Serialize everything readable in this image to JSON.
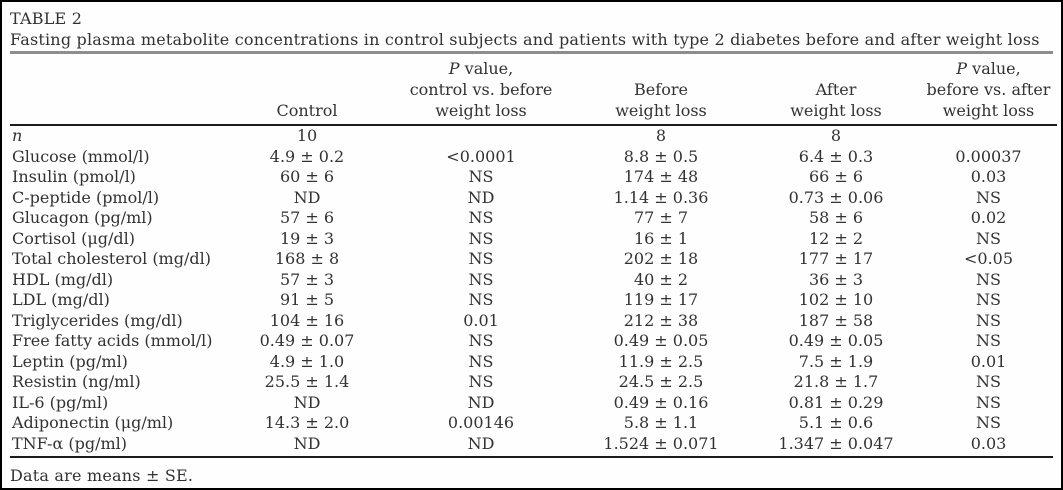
{
  "title": {
    "label": "TABLE 2",
    "caption": "Fasting plasma metabolite concentrations in control subjects and patients with type 2 diabetes before and after weight loss"
  },
  "headers": {
    "row_label": "",
    "control": "Control",
    "p_control_before": {
      "p": "P",
      "rest": " value,",
      "line2": "control vs. before",
      "line3": "weight loss"
    },
    "before": {
      "line1": "Before",
      "line2": "weight loss"
    },
    "after": {
      "line1": "After",
      "line2": "weight loss"
    },
    "p_before_after": {
      "p": "P",
      "rest": " value,",
      "line2": "before vs. after",
      "line3": "weight loss"
    }
  },
  "rows": [
    {
      "label": "n",
      "label_italic": true,
      "control": "10",
      "p1": "",
      "before": "8",
      "after": "8",
      "p2": ""
    },
    {
      "label": "Glucose (mmol/l)",
      "control": "4.9 ± 0.2",
      "p1": "<0.0001",
      "before": "8.8 ± 0.5",
      "after": "6.4 ± 0.3",
      "p2": "0.00037"
    },
    {
      "label": "Insulin (pmol/l)",
      "control": "60 ± 6",
      "p1": "NS",
      "before": "174 ± 48",
      "after": "66 ± 6",
      "p2": "0.03"
    },
    {
      "label": "C-peptide (pmol/l)",
      "control": "ND",
      "p1": "ND",
      "before": "1.14 ± 0.36",
      "after": "0.73 ± 0.06",
      "p2": "NS"
    },
    {
      "label": "Glucagon (pg/ml)",
      "control": "57 ± 6",
      "p1": "NS",
      "before": "77 ± 7",
      "after": "58 ± 6",
      "p2": "0.02"
    },
    {
      "label": "Cortisol (μg/dl)",
      "control": "19 ± 3",
      "p1": "NS",
      "before": "16 ± 1",
      "after": "12 ± 2",
      "p2": "NS"
    },
    {
      "label": "Total cholesterol (mg/dl)",
      "control": "168 ± 8",
      "p1": "NS",
      "before": "202 ± 18",
      "after": "177 ± 17",
      "p2": "<0.05"
    },
    {
      "label": "HDL (mg/dl)",
      "control": "57 ± 3",
      "p1": "NS",
      "before": "40 ± 2",
      "after": "36 ± 3",
      "p2": "NS"
    },
    {
      "label": "LDL (mg/dl)",
      "control": "91 ± 5",
      "p1": "NS",
      "before": "119 ± 17",
      "after": "102 ± 10",
      "p2": "NS"
    },
    {
      "label": "Triglycerides (mg/dl)",
      "control": "104 ± 16",
      "p1": "0.01",
      "before": "212 ± 38",
      "after": "187 ± 58",
      "p2": "NS"
    },
    {
      "label": "Free fatty acids (mmol/l)",
      "control": "0.49 ± 0.07",
      "p1": "NS",
      "before": "0.49 ± 0.05",
      "after": "0.49 ± 0.05",
      "p2": "NS"
    },
    {
      "label": "Leptin (pg/ml)",
      "control": "4.9 ± 1.0",
      "p1": "NS",
      "before": "11.9 ± 2.5",
      "after": "7.5 ± 1.9",
      "p2": "0.01"
    },
    {
      "label": "Resistin (ng/ml)",
      "control": "25.5 ± 1.4",
      "p1": "NS",
      "before": "24.5 ± 2.5",
      "after": "21.8 ± 1.7",
      "p2": "NS"
    },
    {
      "label": "IL-6 (pg/ml)",
      "control": "ND",
      "p1": "ND",
      "before": "0.49 ± 0.16",
      "after": "0.81 ± 0.29",
      "p2": "NS"
    },
    {
      "label": "Adiponectin (μg/ml)",
      "control": "14.3 ± 2.0",
      "p1": "0.00146",
      "before": "5.8 ± 1.1",
      "after": "5.1 ± 0.6",
      "p2": "NS"
    },
    {
      "label": "TNF-α (pg/ml)",
      "control": "ND",
      "p1": "ND",
      "before": "1.524 ± 0.071",
      "after": "1.347 ± 0.047",
      "p2": "0.03"
    }
  ],
  "footnote": "Data are means ± SE.",
  "colors": {
    "text": "#323232",
    "caption_rule": "#8d8d8d",
    "table_rule": "#1c1c1c",
    "border": "#000000",
    "background": "#fefefe"
  }
}
